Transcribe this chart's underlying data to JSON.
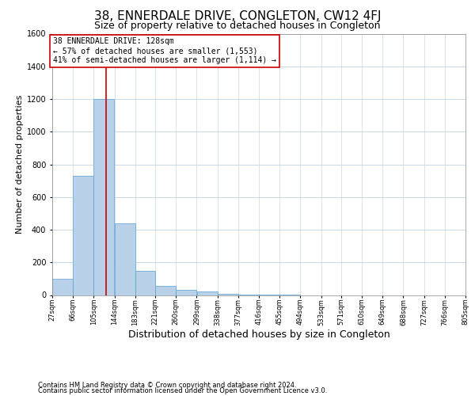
{
  "title": "38, ENNERDALE DRIVE, CONGLETON, CW12 4FJ",
  "subtitle": "Size of property relative to detached houses in Congleton",
  "xlabel": "Distribution of detached houses by size in Congleton",
  "ylabel": "Number of detached properties",
  "bar_values": [
    100,
    730,
    1200,
    440,
    150,
    55,
    30,
    20,
    5,
    3,
    1,
    1,
    0,
    0,
    0,
    0,
    0,
    0,
    0,
    0
  ],
  "bin_edges": [
    27,
    66,
    105,
    144,
    183,
    221,
    260,
    299,
    338,
    377,
    416,
    455,
    494,
    533,
    571,
    610,
    649,
    688,
    727,
    766,
    805
  ],
  "tick_labels": [
    "27sqm",
    "66sqm",
    "105sqm",
    "144sqm",
    "183sqm",
    "221sqm",
    "260sqm",
    "299sqm",
    "338sqm",
    "377sqm",
    "416sqm",
    "455sqm",
    "494sqm",
    "533sqm",
    "571sqm",
    "610sqm",
    "649sqm",
    "688sqm",
    "727sqm",
    "766sqm",
    "805sqm"
  ],
  "bar_color": "#b8d0e8",
  "bar_edge_color": "#5a9fd4",
  "vline_x": 128,
  "vline_color": "#cc0000",
  "ylim": [
    0,
    1600
  ],
  "yticks": [
    0,
    200,
    400,
    600,
    800,
    1000,
    1200,
    1400,
    1600
  ],
  "annotation_title": "38 ENNERDALE DRIVE: 128sqm",
  "annotation_line1": "← 57% of detached houses are smaller (1,553)",
  "annotation_line2": "41% of semi-detached houses are larger (1,114) →",
  "annotation_box_color": "#cc0000",
  "footer1": "Contains HM Land Registry data © Crown copyright and database right 2024.",
  "footer2": "Contains public sector information licensed under the Open Government Licence v3.0.",
  "bg_color": "#ffffff",
  "grid_color": "#c8d8e8",
  "title_fontsize": 11,
  "subtitle_fontsize": 9,
  "ylabel_fontsize": 8,
  "xlabel_fontsize": 9,
  "annot_fontsize": 7,
  "tick_fontsize": 6,
  "ytick_fontsize": 7,
  "footer_fontsize": 6
}
